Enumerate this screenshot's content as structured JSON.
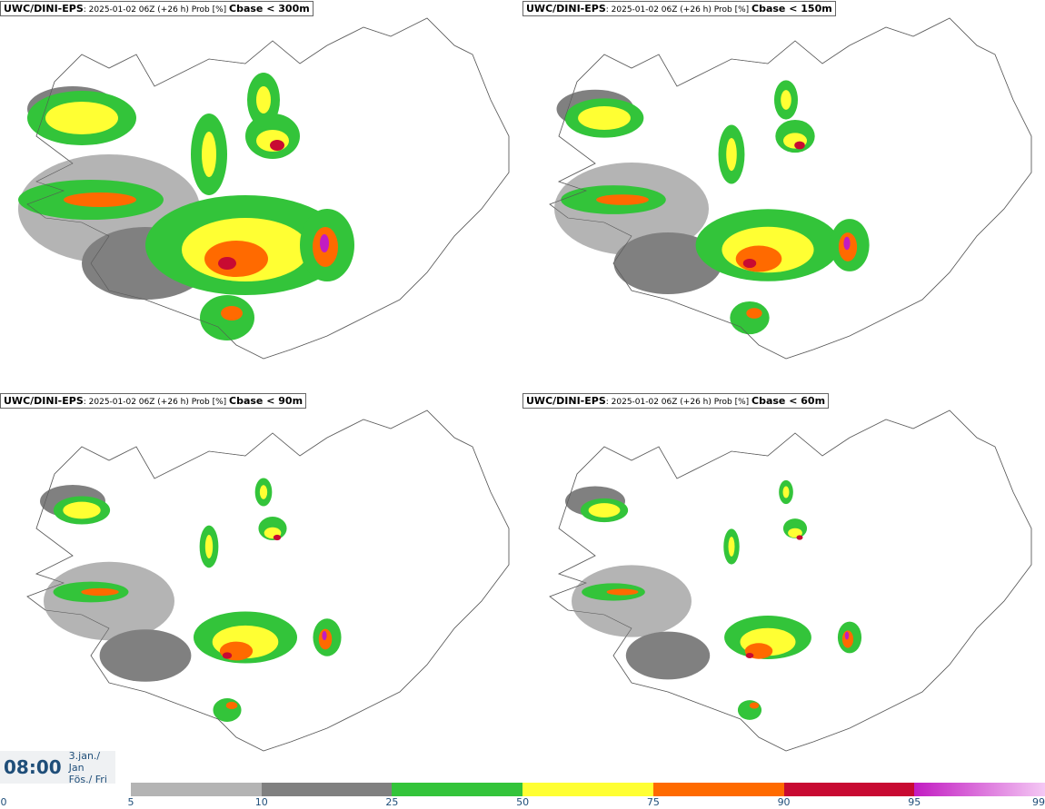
{
  "panels": [
    {
      "model": "UWC/DINI-EPS",
      "info": ": 2025-01-02 06Z (+26 h) Prob [%] ",
      "variable": "Cbase < 300m"
    },
    {
      "model": "UWC/DINI-EPS",
      "info": ": 2025-01-02 06Z (+26 h) Prob [%] ",
      "variable": "Cbase < 150m"
    },
    {
      "model": "UWC/DINI-EPS",
      "info": ": 2025-01-02 06Z (+26 h) Prob [%] ",
      "variable": "Cbase < 90m"
    },
    {
      "model": "UWC/DINI-EPS",
      "info": ": 2025-01-02 06Z (+26 h) Prob [%] ",
      "variable": "Cbase < 60m"
    }
  ],
  "valid_time": {
    "time": "08:00",
    "date_line1": "3.jan./ Jan",
    "date_line2": "Fös./ Fri"
  },
  "colorbar": {
    "zero_label": "0",
    "ticks": [
      "5",
      "10",
      "25",
      "50",
      "75",
      "90",
      "95",
      "99"
    ],
    "colors": [
      "#b4b4b4",
      "#808080",
      "#33c43a",
      "#ffff33",
      "#ff6a00",
      "#c80a32",
      "#c21cc2"
    ]
  }
}
